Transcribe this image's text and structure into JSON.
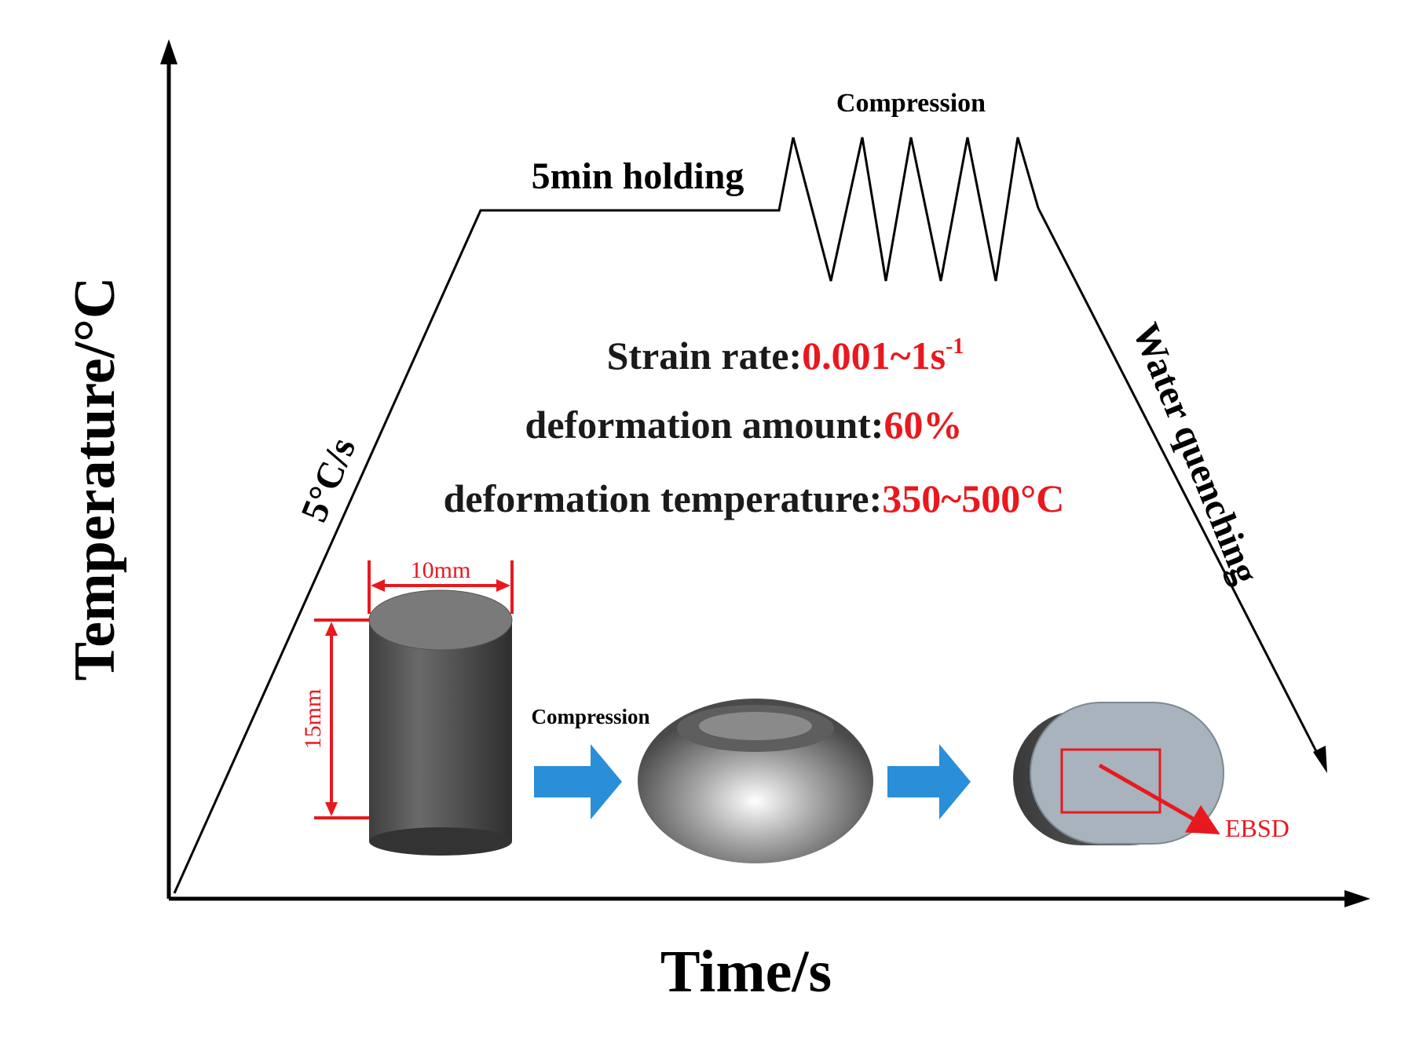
{
  "axes": {
    "y_label": "Temperature/°C",
    "x_label": "Time/s"
  },
  "process": {
    "heating_rate": "5°C/s",
    "holding": "5min holding",
    "compression_top": "Compression",
    "quench": "Water quenching"
  },
  "params": {
    "strain_label": "Strain rate:",
    "strain_value": "0.001~1s",
    "strain_sup": "-1",
    "amount_label": "deformation amount:",
    "amount_value": "60%",
    "temp_label": "deformation temperature:",
    "temp_value": "350~500°C"
  },
  "specimen": {
    "diameter": "10mm",
    "height": "15mm",
    "compression": "Compression",
    "ebsd": "EBSD"
  },
  "colors": {
    "highlight": "#e8191e",
    "arrow_fill": "#2a8fd8",
    "ink": "#000000"
  }
}
